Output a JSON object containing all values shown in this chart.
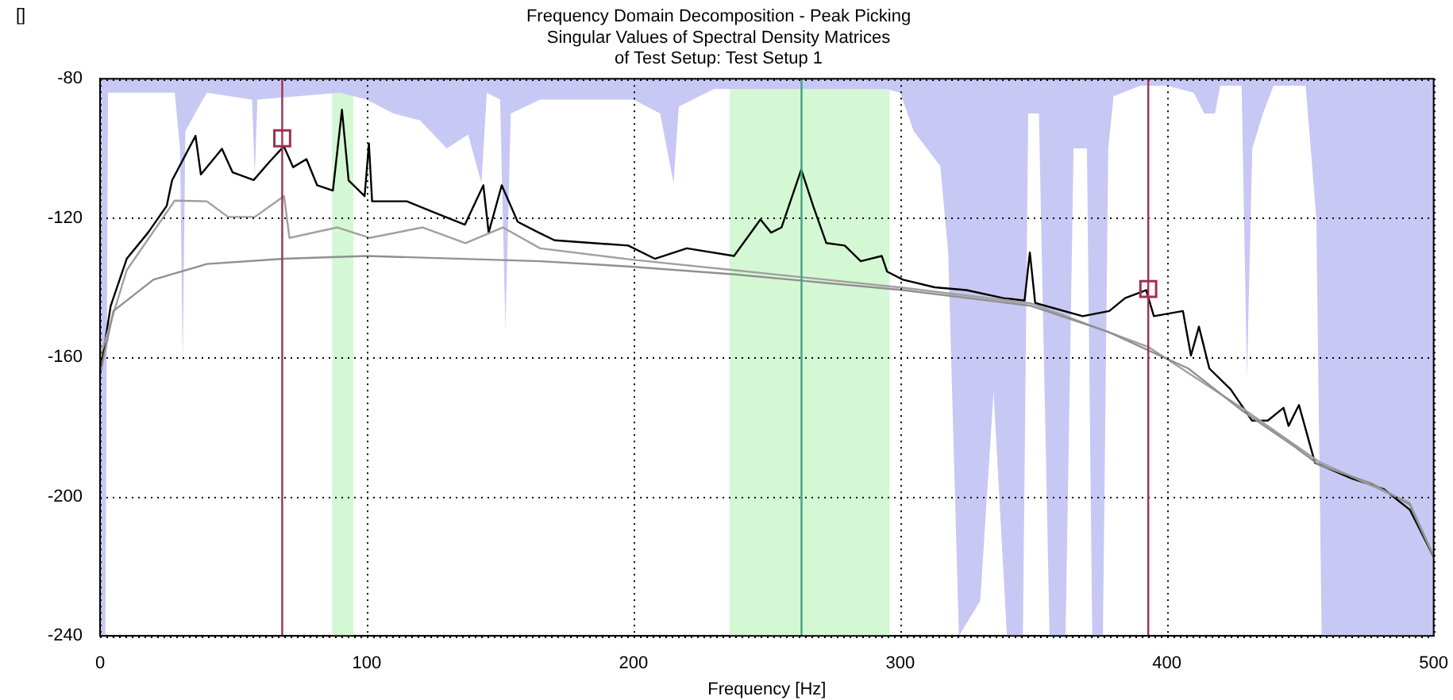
{
  "chart_data": {
    "type": "line",
    "title": "Frequency Domain Decomposition - Peak Picking",
    "subtitle": "Singular Values of Spectral Density Matrices\nof Test Setup: Test Setup 1",
    "xlabel": "Frequency [Hz]",
    "ylabel": "[]",
    "xlim": [
      0,
      500
    ],
    "xticks": [
      0,
      100,
      200,
      300,
      400,
      500
    ],
    "ylim": [
      -240,
      -80
    ],
    "yticks": [
      -240,
      -200,
      -160,
      -120,
      -80
    ],
    "grid": true,
    "legend": false,
    "bands": [
      {
        "axis": "x",
        "from": 87,
        "to": 95,
        "color": "#d4f8d4"
      },
      {
        "axis": "x",
        "from": 236,
        "to": 296,
        "color": "#d4f8d4"
      }
    ],
    "ref_lines": [
      {
        "axis": "x",
        "value": 68.3,
        "color": "#a03050"
      },
      {
        "axis": "x",
        "value": 263,
        "color": "#40a080"
      },
      {
        "axis": "x",
        "value": 393,
        "color": "#a03050"
      }
    ],
    "series": [
      {
        "type": "area",
        "color": "#c8c8f4",
        "x": [
          0,
          2,
          3,
          28,
          30,
          31,
          32,
          40,
          57,
          58,
          59,
          90,
          100,
          110,
          120,
          130,
          138,
          143,
          145,
          150,
          152,
          154,
          165,
          200,
          210,
          215,
          217,
          230,
          295,
          300,
          305,
          315,
          318,
          322,
          330,
          335,
          340,
          346,
          348,
          352,
          356,
          362,
          365,
          370,
          372,
          376,
          378,
          380,
          390,
          400,
          410,
          414,
          418,
          420,
          428,
          430,
          432,
          436,
          440,
          452,
          456,
          458,
          500
        ],
        "values": [
          -240,
          -240,
          -84,
          -84,
          -100,
          -162,
          -95,
          -84,
          -86,
          -108,
          -86,
          -84,
          -86,
          -90,
          -92,
          -100,
          -96,
          -110,
          -84,
          -86,
          -152,
          -90,
          -86,
          -86,
          -90,
          -110,
          -88,
          -83,
          -83,
          -84,
          -95,
          -105,
          -130,
          -240,
          -230,
          -170,
          -240,
          -240,
          -90,
          -90,
          -240,
          -240,
          -100,
          -100,
          -240,
          -240,
          -100,
          -85,
          -82,
          -82,
          -84,
          -90,
          -90,
          -82,
          -82,
          -166,
          -100,
          -90,
          -82,
          -82,
          -120,
          -240,
          -240
        ]
      },
      {
        "color": "#909090",
        "x": [
          0,
          5,
          20,
          40,
          69,
          100,
          165,
          198,
          238,
          301,
          349,
          378,
          393,
          408,
          428,
          448,
          457,
          477,
          491,
          500
        ],
        "values": [
          -165,
          -146.7,
          -137.7,
          -133.2,
          -131.7,
          -130.9,
          -132.4,
          -133.9,
          -136.2,
          -140.7,
          -145.2,
          -152.7,
          -158,
          -163.2,
          -175.2,
          -185.7,
          -190.9,
          -196.3,
          -202.3,
          -217.3
        ]
      },
      {
        "color": "#a0a0a0",
        "x": [
          0,
          10,
          28,
          40,
          48,
          58,
          69,
          71,
          89,
          101,
          121,
          137,
          151,
          165,
          200,
          238,
          301,
          349,
          393,
          428,
          457,
          491,
          500
        ],
        "values": [
          -160,
          -135,
          -115,
          -115.2,
          -119.7,
          -119.7,
          -113.7,
          -125.7,
          -122.7,
          -125.7,
          -122.7,
          -127.2,
          -122.7,
          -128.7,
          -132,
          -135,
          -140,
          -144.5,
          -157,
          -174.5,
          -190,
          -201.8,
          -217
        ]
      },
      {
        "color": "#000000",
        "x": [
          0,
          4,
          10,
          18,
          25,
          27,
          35.8,
          37.8,
          45.7,
          49.7,
          57.6,
          63.5,
          68.9,
          72.4,
          77.4,
          81.4,
          87.3,
          90.7,
          93.2,
          99.2,
          100.8,
          102,
          115,
          126.9,
          136.8,
          143.7,
          145.7,
          150.6,
          156.6,
          164.5,
          170.4,
          198,
          208,
          220,
          237.7,
          247.6,
          251.6,
          255.5,
          262.9,
          267.4,
          272.3,
          279.2,
          285.2,
          293.1,
          295.1,
          301,
          312.9,
          324.8,
          338.7,
          346.6,
          348.6,
          350.6,
          368.4,
          378.4,
          384.3,
          392.2,
          395.1,
          406,
          409,
          412,
          415.9,
          423.9,
          431.9,
          437.8,
          443.7,
          445.6,
          449.5,
          455.5,
          469.3,
          481.2,
          491.1,
          500
        ],
        "values": [
          -164.7,
          -145.2,
          -131.7,
          -124.2,
          -116.5,
          -109.2,
          -96.4,
          -107.5,
          -100.1,
          -106.9,
          -109.1,
          -103.9,
          -99.4,
          -105.4,
          -103.1,
          -110.6,
          -112.1,
          -88.9,
          -109.2,
          -113.7,
          -98.6,
          -115.2,
          -115.2,
          -118.9,
          -121.9,
          -110.6,
          -124.2,
          -110.6,
          -121.1,
          -124.2,
          -126.4,
          -127.9,
          -131.7,
          -128.7,
          -130.9,
          -120.4,
          -124.2,
          -122.7,
          -106.1,
          -116.6,
          -127.2,
          -127.9,
          -132.4,
          -130.9,
          -135.4,
          -137.7,
          -139.9,
          -140.7,
          -143,
          -143.7,
          -129.9,
          -144.4,
          -148.2,
          -146.7,
          -143,
          -140.7,
          -148.2,
          -146.7,
          -159.5,
          -151.2,
          -163.2,
          -169.2,
          -178.2,
          -178.2,
          -174.5,
          -179.7,
          -173.7,
          -190.3,
          -194.8,
          -197.8,
          -203.8,
          -217.3
        ]
      },
      {
        "type": "scatter",
        "color": "#a03050",
        "marker": "square",
        "x": [
          68.3,
          393
        ],
        "values": [
          -97.1,
          -140.4
        ]
      }
    ]
  }
}
